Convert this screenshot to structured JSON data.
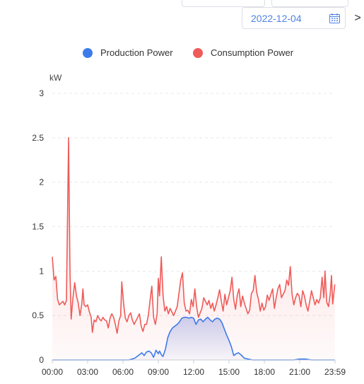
{
  "toolbar": {
    "date": "2022-12-04",
    "next_glyph": ">"
  },
  "legend": [
    {
      "name": "Production Power",
      "color": "#3d7bea"
    },
    {
      "name": "Consumption Power",
      "color": "#ef5b59"
    }
  ],
  "chart_data": {
    "type": "line",
    "ylabel": "kW",
    "ylim": [
      0,
      3
    ],
    "y_ticks": [
      "0",
      "0.5",
      "1",
      "1.5",
      "2",
      "2.5",
      "3"
    ],
    "x_ticks": [
      "00:00",
      "03:00",
      "06:00",
      "09:00",
      "12:00",
      "15:00",
      "18:00",
      "21:00",
      "23:59"
    ],
    "x_range_hours": [
      0,
      24
    ],
    "grid": true,
    "legend_position": "top",
    "series": [
      {
        "name": "Production Power",
        "color": "#3d7bea",
        "area": true,
        "points": [
          [
            0,
            0
          ],
          [
            6.5,
            0
          ],
          [
            7.0,
            0.02
          ],
          [
            7.3,
            0.05
          ],
          [
            7.6,
            0.08
          ],
          [
            7.8,
            0.05
          ],
          [
            8.0,
            0.09
          ],
          [
            8.2,
            0.1
          ],
          [
            8.4,
            0.08
          ],
          [
            8.6,
            0.03
          ],
          [
            8.8,
            0.11
          ],
          [
            9.0,
            0.07
          ],
          [
            9.1,
            0.1
          ],
          [
            9.3,
            0.05
          ],
          [
            9.4,
            0.04
          ],
          [
            9.6,
            0.12
          ],
          [
            9.8,
            0.25
          ],
          [
            10.0,
            0.32
          ],
          [
            10.2,
            0.36
          ],
          [
            10.4,
            0.38
          ],
          [
            10.6,
            0.4
          ],
          [
            10.8,
            0.43
          ],
          [
            11.0,
            0.47
          ],
          [
            11.2,
            0.48
          ],
          [
            11.4,
            0.48
          ],
          [
            11.6,
            0.47
          ],
          [
            11.8,
            0.48
          ],
          [
            12.0,
            0.47
          ],
          [
            12.2,
            0.4
          ],
          [
            12.4,
            0.45
          ],
          [
            12.6,
            0.46
          ],
          [
            12.8,
            0.43
          ],
          [
            13.0,
            0.46
          ],
          [
            13.2,
            0.48
          ],
          [
            13.4,
            0.45
          ],
          [
            13.6,
            0.43
          ],
          [
            13.8,
            0.46
          ],
          [
            14.0,
            0.47
          ],
          [
            14.2,
            0.46
          ],
          [
            14.4,
            0.42
          ],
          [
            14.6,
            0.35
          ],
          [
            14.8,
            0.28
          ],
          [
            15.0,
            0.22
          ],
          [
            15.2,
            0.15
          ],
          [
            15.4,
            0.05
          ],
          [
            15.6,
            0.07
          ],
          [
            15.8,
            0.08
          ],
          [
            16.0,
            0.06
          ],
          [
            16.3,
            0.02
          ],
          [
            16.6,
            0.01
          ],
          [
            17.0,
            0
          ],
          [
            20.5,
            0
          ],
          [
            21.0,
            0.01
          ],
          [
            21.5,
            0.01
          ],
          [
            22.0,
            0
          ],
          [
            23.98,
            0
          ]
        ]
      },
      {
        "name": "Consumption Power",
        "color": "#ef5b59",
        "area": true,
        "points": [
          [
            0.0,
            1.16
          ],
          [
            0.15,
            0.9
          ],
          [
            0.3,
            0.94
          ],
          [
            0.45,
            0.68
          ],
          [
            0.6,
            0.62
          ],
          [
            0.75,
            0.64
          ],
          [
            0.9,
            0.66
          ],
          [
            1.05,
            0.62
          ],
          [
            1.2,
            0.67
          ],
          [
            1.38,
            2.5
          ],
          [
            1.5,
            1.0
          ],
          [
            1.6,
            0.46
          ],
          [
            1.75,
            0.7
          ],
          [
            1.9,
            0.87
          ],
          [
            2.05,
            0.72
          ],
          [
            2.2,
            0.64
          ],
          [
            2.35,
            0.5
          ],
          [
            2.5,
            0.63
          ],
          [
            2.6,
            0.8
          ],
          [
            2.7,
            0.62
          ],
          [
            2.85,
            0.6
          ],
          [
            3.0,
            0.62
          ],
          [
            3.15,
            0.54
          ],
          [
            3.3,
            0.48
          ],
          [
            3.4,
            0.31
          ],
          [
            3.55,
            0.45
          ],
          [
            3.7,
            0.43
          ],
          [
            3.85,
            0.5
          ],
          [
            4.0,
            0.46
          ],
          [
            4.15,
            0.44
          ],
          [
            4.3,
            0.48
          ],
          [
            4.45,
            0.45
          ],
          [
            4.6,
            0.44
          ],
          [
            4.75,
            0.36
          ],
          [
            4.9,
            0.47
          ],
          [
            5.05,
            0.52
          ],
          [
            5.2,
            0.48
          ],
          [
            5.35,
            0.4
          ],
          [
            5.5,
            0.3
          ],
          [
            5.65,
            0.44
          ],
          [
            5.8,
            0.5
          ],
          [
            5.9,
            0.88
          ],
          [
            6.05,
            0.64
          ],
          [
            6.2,
            0.47
          ],
          [
            6.35,
            0.43
          ],
          [
            6.5,
            0.5
          ],
          [
            6.65,
            0.53
          ],
          [
            6.8,
            0.45
          ],
          [
            6.95,
            0.4
          ],
          [
            7.1,
            0.44
          ],
          [
            7.25,
            0.48
          ],
          [
            7.4,
            0.52
          ],
          [
            7.55,
            0.38
          ],
          [
            7.7,
            0.32
          ],
          [
            7.85,
            0.4
          ],
          [
            8.0,
            0.4
          ],
          [
            8.15,
            0.5
          ],
          [
            8.3,
            0.67
          ],
          [
            8.45,
            0.83
          ],
          [
            8.6,
            0.48
          ],
          [
            8.75,
            0.4
          ],
          [
            8.9,
            0.52
          ],
          [
            9.0,
            0.92
          ],
          [
            9.1,
            0.72
          ],
          [
            9.25,
            1.16
          ],
          [
            9.4,
            0.72
          ],
          [
            9.55,
            0.55
          ],
          [
            9.7,
            0.6
          ],
          [
            9.85,
            0.52
          ],
          [
            10.0,
            0.58
          ],
          [
            10.15,
            0.54
          ],
          [
            10.3,
            0.5
          ],
          [
            10.45,
            0.55
          ],
          [
            10.6,
            0.6
          ],
          [
            10.75,
            0.75
          ],
          [
            10.9,
            0.9
          ],
          [
            11.05,
            0.98
          ],
          [
            11.2,
            0.64
          ],
          [
            11.35,
            0.55
          ],
          [
            11.5,
            0.56
          ],
          [
            11.65,
            0.52
          ],
          [
            11.8,
            0.68
          ],
          [
            11.95,
            0.6
          ],
          [
            12.1,
            0.8
          ],
          [
            12.25,
            0.6
          ],
          [
            12.4,
            0.48
          ],
          [
            12.55,
            0.53
          ],
          [
            12.7,
            0.58
          ],
          [
            12.85,
            0.7
          ],
          [
            13.0,
            0.66
          ],
          [
            13.15,
            0.62
          ],
          [
            13.3,
            0.67
          ],
          [
            13.45,
            0.58
          ],
          [
            13.6,
            0.64
          ],
          [
            13.75,
            0.55
          ],
          [
            13.9,
            0.62
          ],
          [
            14.05,
            0.7
          ],
          [
            14.2,
            0.79
          ],
          [
            14.35,
            0.66
          ],
          [
            14.5,
            0.55
          ],
          [
            14.65,
            0.74
          ],
          [
            14.8,
            0.62
          ],
          [
            14.95,
            0.7
          ],
          [
            15.1,
            0.78
          ],
          [
            15.25,
            0.93
          ],
          [
            15.4,
            0.68
          ],
          [
            15.55,
            0.57
          ],
          [
            15.7,
            0.73
          ],
          [
            15.85,
            0.8
          ],
          [
            16.0,
            0.6
          ],
          [
            16.15,
            0.72
          ],
          [
            16.3,
            0.64
          ],
          [
            16.45,
            0.58
          ],
          [
            16.6,
            0.52
          ],
          [
            16.75,
            0.56
          ],
          [
            16.9,
            0.75
          ],
          [
            17.05,
            0.78
          ],
          [
            17.2,
            0.95
          ],
          [
            17.35,
            0.76
          ],
          [
            17.5,
            0.68
          ],
          [
            17.65,
            0.55
          ],
          [
            17.8,
            0.64
          ],
          [
            17.95,
            0.56
          ],
          [
            18.1,
            0.6
          ],
          [
            18.25,
            0.73
          ],
          [
            18.4,
            0.67
          ],
          [
            18.55,
            0.74
          ],
          [
            18.7,
            0.8
          ],
          [
            18.85,
            0.58
          ],
          [
            19.0,
            0.7
          ],
          [
            19.15,
            0.8
          ],
          [
            19.3,
            0.85
          ],
          [
            19.45,
            0.7
          ],
          [
            19.6,
            0.74
          ],
          [
            19.75,
            0.78
          ],
          [
            19.9,
            0.9
          ],
          [
            20.05,
            0.84
          ],
          [
            20.2,
            1.05
          ],
          [
            20.35,
            0.74
          ],
          [
            20.5,
            0.62
          ],
          [
            20.65,
            0.7
          ],
          [
            20.8,
            0.75
          ],
          [
            20.95,
            0.72
          ],
          [
            21.1,
            0.6
          ],
          [
            21.25,
            0.78
          ],
          [
            21.4,
            0.72
          ],
          [
            21.55,
            0.62
          ],
          [
            21.7,
            0.55
          ],
          [
            21.85,
            0.66
          ],
          [
            22.0,
            0.78
          ],
          [
            22.15,
            0.7
          ],
          [
            22.3,
            0.62
          ],
          [
            22.45,
            0.68
          ],
          [
            22.6,
            0.64
          ],
          [
            22.75,
            0.7
          ],
          [
            22.9,
            0.93
          ],
          [
            23.05,
            0.7
          ],
          [
            23.15,
            1.0
          ],
          [
            23.3,
            0.65
          ],
          [
            23.45,
            0.6
          ],
          [
            23.6,
            0.75
          ],
          [
            23.7,
            0.95
          ],
          [
            23.8,
            0.63
          ],
          [
            23.98,
            0.85
          ]
        ]
      }
    ]
  }
}
